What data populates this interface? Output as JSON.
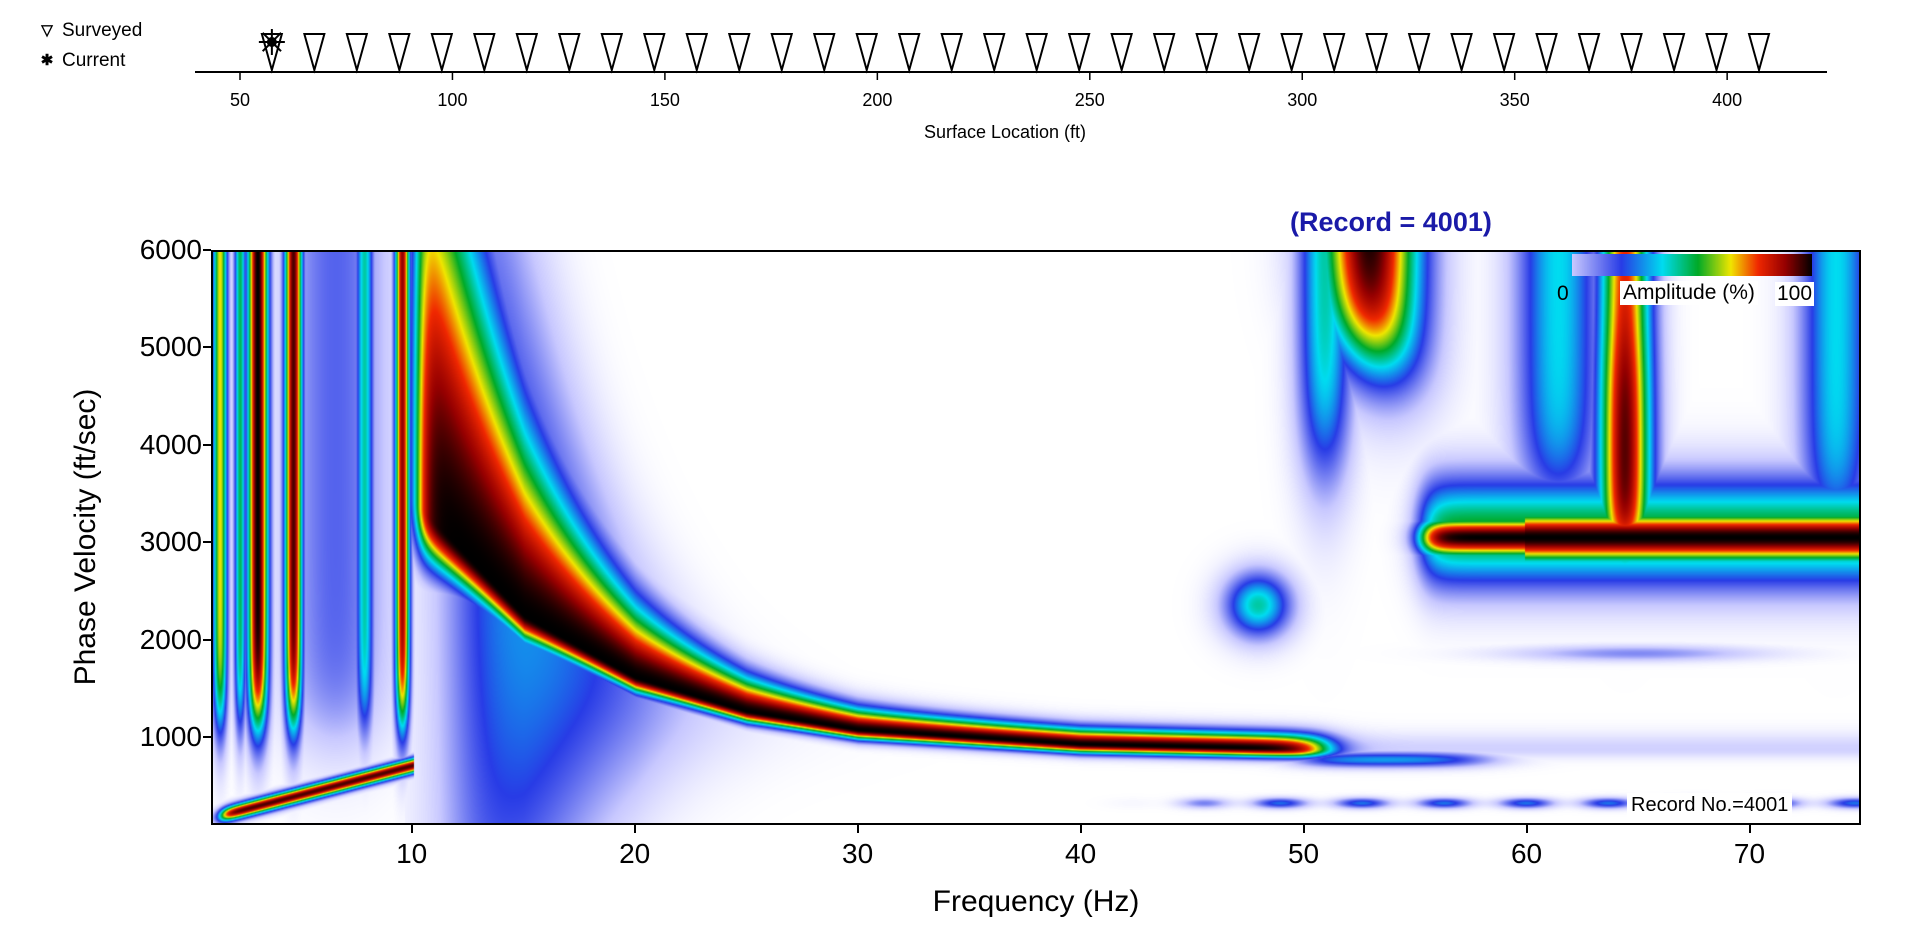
{
  "legend": {
    "surveyed_label": "Surveyed",
    "current_label": "Current",
    "surveyed_icon": "triangle-down-icon",
    "current_icon": "asterisk-icon"
  },
  "top_axis": {
    "label": "Surface Location (ft)",
    "ticks": [
      "50",
      "100",
      "150",
      "200",
      "250",
      "300",
      "350",
      "400"
    ],
    "tick_values": [
      50,
      100,
      150,
      200,
      250,
      300,
      350,
      400
    ],
    "range": [
      44,
      429
    ],
    "surveyed_locations": [
      57.5,
      67.5,
      77.5,
      87.5,
      97.5,
      107.5,
      117.5,
      127.5,
      137.5,
      147.5,
      157.5,
      167.5,
      177.5,
      187.5,
      197.5,
      207.5,
      217.5,
      227.5,
      237.5,
      247.5,
      257.5,
      267.5,
      277.5,
      287.5,
      297.5,
      307.5,
      317.5,
      327.5,
      337.5,
      347.5,
      357.5,
      367.5,
      377.5,
      387.5,
      397.5,
      407.5
    ],
    "current_location": 57.5
  },
  "chart_data": {
    "type": "heatmap",
    "title": "(Record = 4001)",
    "xlabel": "Frequency (Hz)",
    "ylabel": "Phase Velocity (ft/sec)",
    "xlim": [
      1,
      75
    ],
    "ylim": [
      100,
      6000
    ],
    "xticks": [
      "10",
      "20",
      "30",
      "40",
      "50",
      "60",
      "70"
    ],
    "xtick_values": [
      10,
      20,
      30,
      40,
      50,
      60,
      70
    ],
    "yticks": [
      "1000",
      "2000",
      "3000",
      "4000",
      "5000",
      "6000"
    ],
    "ytick_values": [
      1000,
      2000,
      3000,
      4000,
      5000,
      6000
    ],
    "colorbar": {
      "label": "Amplitude (%)",
      "min_label": "0",
      "max_label": "100",
      "range": [
        0,
        100
      ],
      "colors": [
        "#ffffff",
        "#c8c8ff",
        "#283ce6",
        "#00dcf0",
        "#00aa28",
        "#f0e600",
        "#f02800",
        "#960000",
        "#000000"
      ]
    },
    "annotation": "Record No.=4001",
    "fundamental_mode_ridge": {
      "frequency_hz": [
        10,
        15,
        20,
        25,
        30,
        40,
        50
      ],
      "phase_velocity_ftps": [
        3450,
        2240,
        1600,
        1250,
        1060,
        910,
        860
      ]
    },
    "higher_mode_ridge": {
      "frequency_hz": [
        55,
        60,
        65,
        70,
        75
      ],
      "phase_velocity_ftps": [
        3100,
        3050,
        3000,
        3000,
        3000
      ]
    },
    "grid": false
  }
}
